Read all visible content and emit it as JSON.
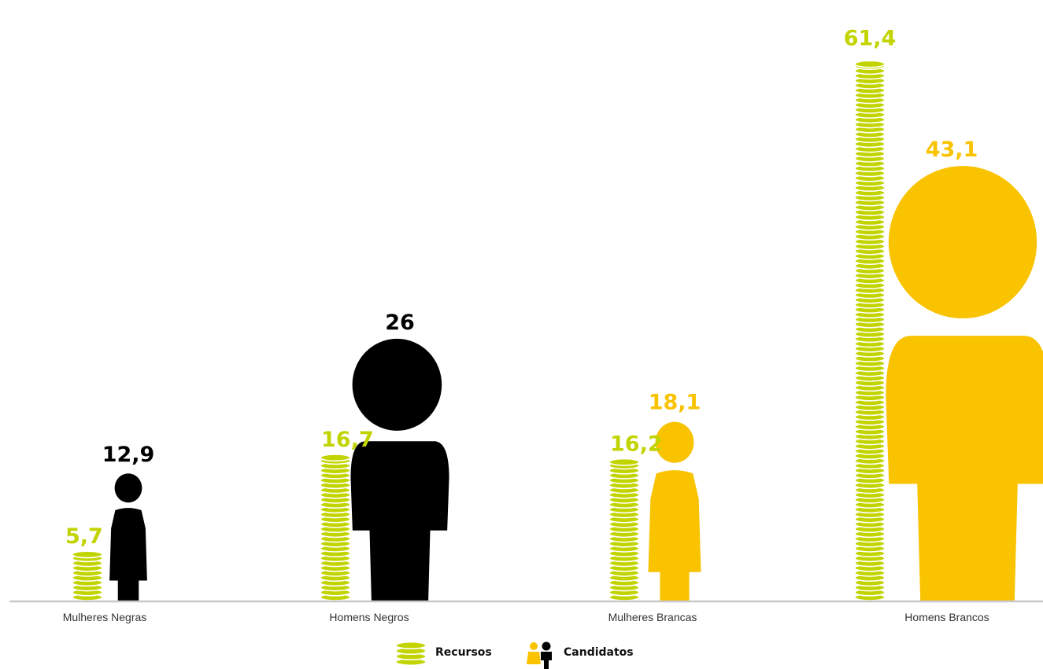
{
  "chart_data": {
    "type": "bar",
    "categories": [
      "Mulheres Negras",
      "Homens Negros",
      "Mulheres Brancas",
      "Homens Brancos"
    ],
    "series": [
      {
        "name": "Recursos",
        "values": [
          5.7,
          16.7,
          16.2,
          61.4
        ],
        "labels": [
          "5,7",
          "16,7",
          "16,2",
          "61,4"
        ]
      },
      {
        "name": "Candidatos",
        "values": [
          12.9,
          26,
          18.1,
          43.1
        ],
        "labels": [
          "12,9",
          "26",
          "18,1",
          "43,1"
        ]
      }
    ],
    "person_gender": [
      "female",
      "male",
      "female",
      "male"
    ],
    "person_colors": [
      "#000000",
      "#000000",
      "#f9c300",
      "#f9c300"
    ],
    "coin_color": "#c2d400",
    "legend": {
      "position": "bottom-center",
      "recursos_label": "Recursos",
      "candidatos_label": "Candidatos"
    },
    "axis_color": "#c8c8c8"
  }
}
